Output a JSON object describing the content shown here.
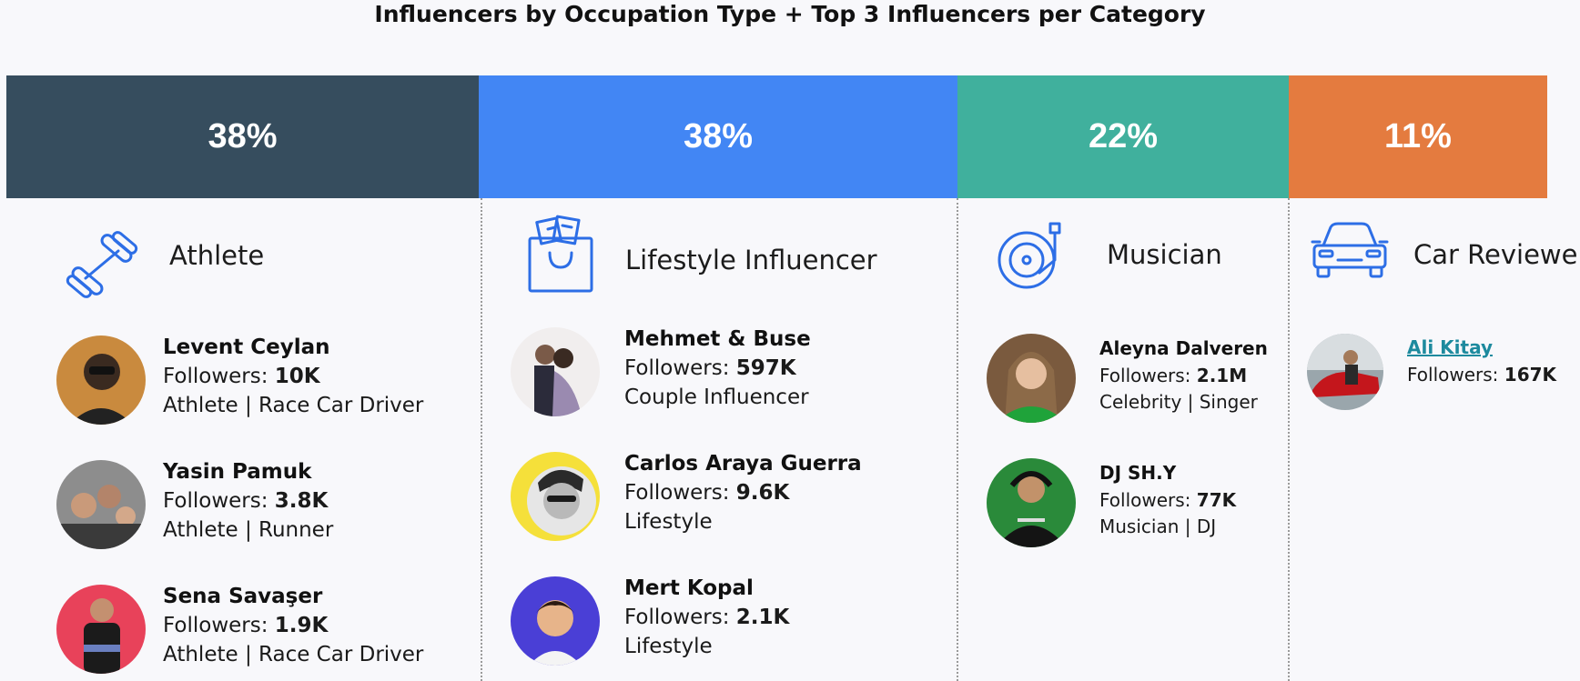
{
  "title": "Influencers by Occupation Type + Top 3 Influencers per Category",
  "colors": {
    "athlete": "#364d5e",
    "lifestyle": "#4286f4",
    "musician": "#40b09d",
    "car": "#e47b3f",
    "icon": "#2d6ee6"
  },
  "categories": [
    {
      "percent": "38%",
      "label": "Athlete",
      "icon": "dumbbell-icon",
      "influencers": [
        {
          "name": "Levent Ceylan",
          "followers_label": "Followers: ",
          "followers": "10K",
          "occupation": "Athlete | Race Car Driver"
        },
        {
          "name": "Yasin Pamuk",
          "followers_label": "Followers: ",
          "followers": "3.8K",
          "occupation": "Athlete | Runner"
        },
        {
          "name": "Sena Savaşer",
          "followers_label": "Followers: ",
          "followers": "1.9K",
          "occupation": "Athlete | Race Car Driver"
        }
      ]
    },
    {
      "percent": "38%",
      "label": "Lifestyle Influencer",
      "icon": "shopping-bag-icon",
      "influencers": [
        {
          "name": "Mehmet & Buse",
          "followers_label": "Followers: ",
          "followers": "597K",
          "occupation": "Couple Influencer"
        },
        {
          "name": "Carlos Araya Guerra",
          "followers_label": "Followers: ",
          "followers": "9.6K",
          "occupation": "Lifestyle"
        },
        {
          "name": "Mert Kopal",
          "followers_label": "Followers: ",
          "followers": "2.1K",
          "occupation": "Lifestyle"
        }
      ]
    },
    {
      "percent": "22%",
      "label": "Musician",
      "icon": "turntable-icon",
      "influencers": [
        {
          "name": "Aleyna Dalveren",
          "followers_label": "Followers: ",
          "followers": "2.1M",
          "occupation": "Celebrity | Singer"
        },
        {
          "name": "DJ SH.Y",
          "followers_label": "Followers: ",
          "followers": "77K",
          "occupation": "Musician | DJ"
        }
      ]
    },
    {
      "percent": "11%",
      "label": "Car Reviewer",
      "icon": "car-icon",
      "influencers": [
        {
          "name": "Ali Kitay",
          "followers_label": "Followers: ",
          "followers": "167K"
        }
      ]
    }
  ]
}
